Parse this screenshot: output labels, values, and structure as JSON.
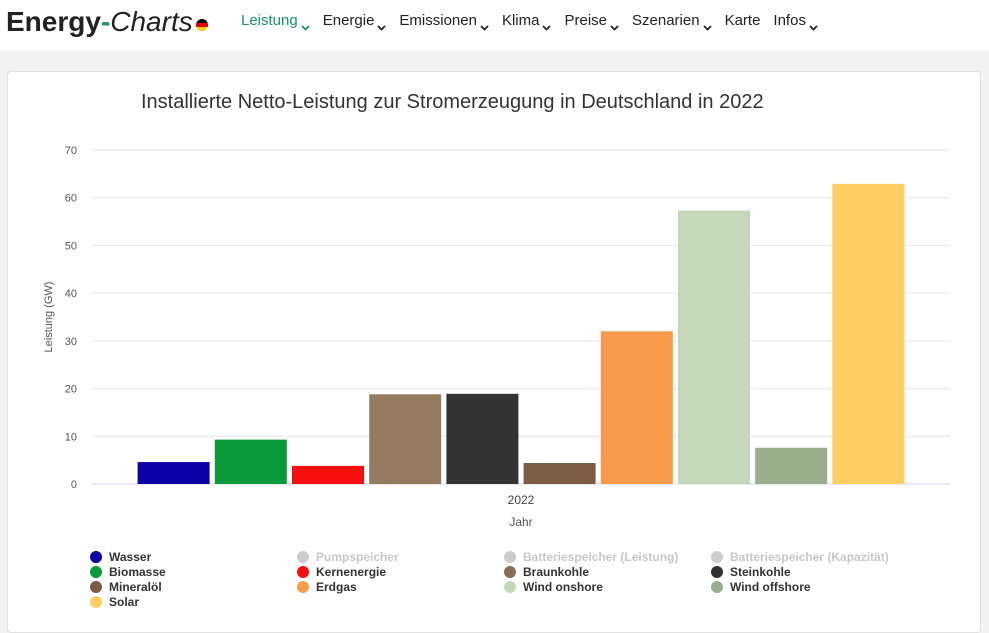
{
  "header": {
    "logo_part1": "Energy",
    "logo_dash": "-",
    "logo_part2": "Charts",
    "nav": [
      {
        "label": "Leistung",
        "active": true
      },
      {
        "label": "Energie"
      },
      {
        "label": "Emissionen"
      },
      {
        "label": "Klima"
      },
      {
        "label": "Preise"
      },
      {
        "label": "Szenarien"
      },
      {
        "label": "Karte",
        "nochevron": true
      },
      {
        "label": "Infos"
      }
    ]
  },
  "colors": {
    "accent": "#15956c",
    "grid": "#e6e6e6",
    "legend_disabled": "#cccccc"
  },
  "chart_data": {
    "type": "bar",
    "title": "Installierte Netto-Leistung zur Stromerzeugung in Deutschland in 2022",
    "xlabel": "Jahr",
    "ylabel": "Leistung (GW)",
    "ylim": [
      0,
      70
    ],
    "yticks": [
      0,
      10,
      20,
      30,
      40,
      50,
      60,
      70
    ],
    "categories": [
      "2022"
    ],
    "series": [
      {
        "name": "Wasser",
        "value": 4.6,
        "color": "#0c00a8"
      },
      {
        "name": "Biomasse",
        "value": 9.3,
        "color": "#0a9a3a"
      },
      {
        "name": "Kernenergie",
        "value": 3.8,
        "color": "#f50f0f"
      },
      {
        "name": "Braunkohle",
        "value": 18.8,
        "color": "#957b60"
      },
      {
        "name": "Steinkohle",
        "value": 18.9,
        "color": "#333333"
      },
      {
        "name": "Mineralöl",
        "value": 4.4,
        "color": "#7c5c45"
      },
      {
        "name": "Erdgas",
        "value": 32.0,
        "color": "#f89a4b"
      },
      {
        "name": "Wind onshore",
        "value": 57.3,
        "color": "#c4d8b9"
      },
      {
        "name": "Wind offshore",
        "value": 7.6,
        "color": "#9aae8e"
      },
      {
        "name": "Solar",
        "value": 62.9,
        "color": "#ffcd64"
      }
    ],
    "legend": [
      {
        "name": "Wasser",
        "color": "#0c00a8",
        "enabled": true
      },
      {
        "name": "Pumpspeicher",
        "color": "#cccccc",
        "enabled": false
      },
      {
        "name": "Batteriespeicher (Leistung)",
        "color": "#cccccc",
        "enabled": false
      },
      {
        "name": "Batteriespeicher (Kapazität)",
        "color": "#cccccc",
        "enabled": false
      },
      {
        "name": "Biomasse",
        "color": "#0a9a3a",
        "enabled": true
      },
      {
        "name": "Kernenergie",
        "color": "#f50f0f",
        "enabled": true
      },
      {
        "name": "Braunkohle",
        "color": "#8b6c52",
        "enabled": true
      },
      {
        "name": "Steinkohle",
        "color": "#333333",
        "enabled": true
      },
      {
        "name": "Mineralöl",
        "color": "#7c5c45",
        "enabled": true
      },
      {
        "name": "Erdgas",
        "color": "#f89a4b",
        "enabled": true
      },
      {
        "name": "Wind onshore",
        "color": "#c4d8b9",
        "enabled": true
      },
      {
        "name": "Wind offshore",
        "color": "#9aae8e",
        "enabled": true
      },
      {
        "name": "Solar",
        "color": "#ffcd64",
        "enabled": true
      }
    ]
  }
}
